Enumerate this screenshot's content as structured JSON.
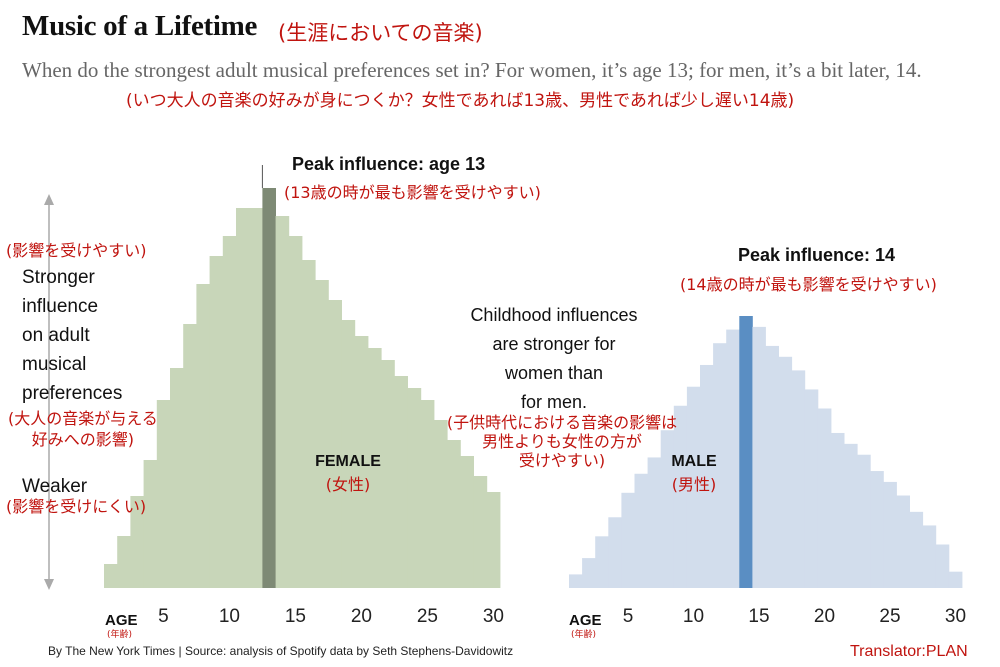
{
  "header": {
    "title": "Music of a Lifetime",
    "title_jp": "(生涯においての音楽)",
    "subtitle": "When do the strongest adult musical preferences set in? For women, it’s age 13; for men, it’s a bit later, 14.",
    "subtitle_jp": "(いつ大人の音楽の好みが身につくか？女性であれば13歳、男性であれば少し遅い14歳)"
  },
  "annotations": {
    "female_peak": "Peak influence: age 13",
    "female_peak_jp": "(13歳の時が最も影響を受けやすい)",
    "male_peak": "Peak influence: 14",
    "male_peak_jp": "(14歳の時が最も影響を受けやすい)",
    "stronger_jp": "(影響を受けやすい)",
    "stronger_lines": [
      "Stronger",
      "influence",
      "on adult",
      "musical",
      "preferences"
    ],
    "stronger_desc_jp": [
      "(大人の音楽が与える",
      "好みへの影響)"
    ],
    "weaker": "Weaker",
    "weaker_jp": "(影響を受けにくい)",
    "childhood_lines": [
      "Childhood influences",
      "are stronger for",
      "women than",
      "for men."
    ],
    "childhood_jp": [
      "(子供時代における音楽の影響は",
      "男性よりも女性の方が",
      "受けやすい)"
    ],
    "female_label": "FEMALE",
    "female_label_jp": "(女性)",
    "male_label": "MALE",
    "male_label_jp": "(男性)",
    "age_axis": "AGE",
    "age_axis_jp": "(年齢)"
  },
  "footer": {
    "source": "By The New York Times | Source: analysis of Spotify data by Seth Stephens-Davidowitz",
    "translator": "Translator:PLAN"
  },
  "colors": {
    "female_bar": "#c8d6b9",
    "female_peak": "#7e8a75",
    "male_bar": "#d2ddec",
    "male_peak": "#5a8ec3"
  },
  "chart_data": [
    {
      "type": "bar",
      "series_label": "FEMALE",
      "x": [
        1,
        2,
        3,
        4,
        5,
        6,
        7,
        8,
        9,
        10,
        11,
        12,
        13,
        14,
        15,
        16,
        17,
        18,
        19,
        20,
        21,
        22,
        23,
        24,
        25,
        26,
        27,
        28,
        29,
        30
      ],
      "values": [
        6,
        13,
        23,
        32,
        47,
        55,
        66,
        76,
        83,
        88,
        95,
        95,
        100,
        93,
        88,
        82,
        77,
        72,
        67,
        63,
        60,
        57,
        53,
        50,
        47,
        42,
        37,
        33,
        28,
        24
      ],
      "peak_age": 13,
      "x_ticks": [
        5,
        10,
        15,
        20,
        25,
        30
      ],
      "xlabel": "AGE",
      "ylabel_top": "Stronger influence on adult musical preferences",
      "ylabel_bottom": "Weaker",
      "ylim": [
        0,
        100
      ]
    },
    {
      "type": "bar",
      "series_label": "MALE",
      "x": [
        1,
        2,
        3,
        4,
        5,
        6,
        7,
        8,
        9,
        10,
        11,
        12,
        13,
        14,
        15,
        16,
        17,
        18,
        19,
        20,
        21,
        22,
        23,
        24,
        25,
        26,
        27,
        28,
        29,
        30
      ],
      "values": [
        5,
        11,
        19,
        26,
        35,
        42,
        48,
        58,
        67,
        74,
        82,
        90,
        95,
        100,
        96,
        89,
        85,
        80,
        73,
        66,
        57,
        53,
        49,
        43,
        39,
        34,
        28,
        23,
        16,
        6
      ],
      "peak_age": 14,
      "x_ticks": [
        5,
        10,
        15,
        20,
        25,
        30
      ],
      "xlabel": "AGE",
      "ylim": [
        0,
        100
      ]
    }
  ]
}
